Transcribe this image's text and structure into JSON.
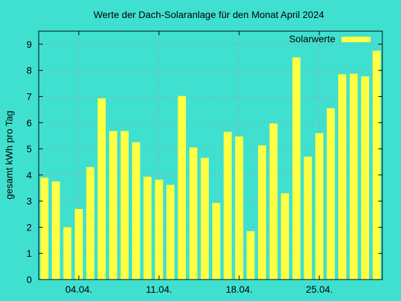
{
  "chart_data": {
    "type": "bar",
    "title": "Werte der Dach-Solaranlage für den Monat April 2024",
    "xlabel": "",
    "ylabel": "gesamt kWh pro Tag",
    "ylim": [
      0,
      9.5
    ],
    "yticks": [
      0,
      1,
      2,
      3,
      4,
      5,
      6,
      7,
      8,
      9
    ],
    "grid": true,
    "legend": "top-right",
    "x_ticks": [
      {
        "day": 4,
        "label": "04.04."
      },
      {
        "day": 11,
        "label": "11.04."
      },
      {
        "day": 18,
        "label": "18.04."
      },
      {
        "day": 25,
        "label": "25.04."
      }
    ],
    "categories": [
      "01.04.",
      "02.04.",
      "03.04.",
      "04.04.",
      "05.04.",
      "06.04.",
      "07.04.",
      "08.04.",
      "09.04.",
      "10.04.",
      "11.04.",
      "12.04.",
      "13.04.",
      "14.04.",
      "15.04.",
      "16.04.",
      "17.04.",
      "18.04.",
      "19.04.",
      "20.04.",
      "21.04.",
      "22.04.",
      "23.04.",
      "24.04.",
      "25.04.",
      "26.04.",
      "27.04.",
      "28.04.",
      "29.04.",
      "30.04."
    ],
    "series": [
      {
        "name": "Solarwerte",
        "color": "#ffff44",
        "values": [
          3.9,
          3.75,
          2.0,
          2.7,
          4.3,
          6.93,
          5.68,
          5.68,
          5.25,
          3.93,
          3.82,
          3.62,
          7.02,
          5.05,
          4.65,
          2.93,
          5.65,
          5.47,
          1.85,
          5.13,
          5.97,
          3.3,
          8.5,
          4.7,
          5.6,
          6.55,
          7.85,
          7.87,
          7.77,
          8.75
        ]
      }
    ]
  }
}
